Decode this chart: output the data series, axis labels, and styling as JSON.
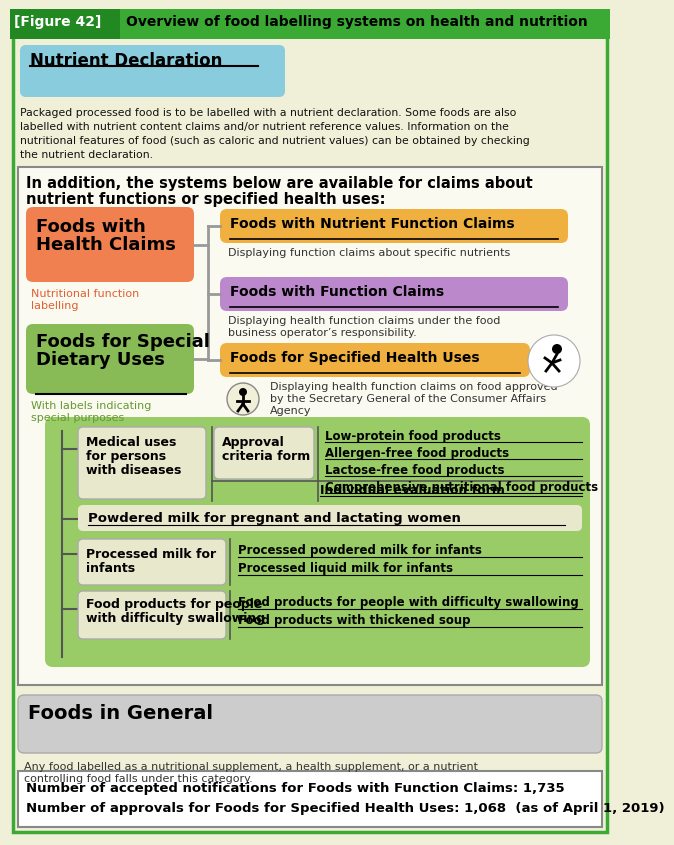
{
  "bg_color": "#f0f0d8",
  "header_green": "#3aaa35",
  "header_dark_green": "#228822",
  "fig_label": "[Figure 42]",
  "header_title": "Overview of food labelling systems on health and nutrition",
  "nd_box_color": "#88ccdd",
  "nd_title": "Nutrient Declaration",
  "nd_body1": "Packaged processed food is to be labelled with a nutrient declaration. Some foods are also",
  "nd_body2": "labelled with nutrient content claims and/or nutrient reference values. Information on the",
  "nd_body3": "nutritional features of food (such as caloric and nutrient values) can be obtained by checking",
  "nd_body4": "the nutrient declaration.",
  "main_bg": "#fafaf0",
  "main_border": "#888888",
  "intro_line1": "In addition, the systems below are available for claims about",
  "intro_line2": "nutrient functions or specified health uses:",
  "orange_color": "#f08050",
  "fhc_line1": "Foods with",
  "fhc_line2": "Health Claims",
  "nfl_color": "#e06030",
  "nfl_line1": "Nutritional function",
  "nfl_line2": "labelling",
  "green_left_color": "#88bb55",
  "fsdu_line1": "Foods for Special",
  "fsdu_line2": "Dietary Uses",
  "sp_color": "#669933",
  "sp_line1": "With labels indicating",
  "sp_line2": "special purposes",
  "amber_color": "#f0b040",
  "nfc_title": "Foods with Nutrient Function Claims",
  "nfc_desc": "Displaying function claims about specific nutrients",
  "purple_color": "#bb88cc",
  "fc_title": "Foods with Function Claims",
  "fc_desc1": "Displaying health function claims under the food",
  "fc_desc2": "business operator’s responsibility.",
  "sh_title": "Foods for Specified Health Uses",
  "sh_desc1": "Displaying health function claims on food approved",
  "sh_desc2": "by the Secretary General of the Consumer Affairs",
  "sh_desc3": "Agency",
  "green_sub_color": "#99cc66",
  "pale_box_color": "#e8e8cc",
  "pale_border": "#aaaaaa",
  "mu_line1": "Medical uses",
  "mu_line2": "for persons",
  "mu_line3": "with diseases",
  "ac_line1": "Approval",
  "ac_line2": "criteria form",
  "lp_text": "Low-protein food products",
  "af_text": "Allergen-free food products",
  "lf_text": "Lactose-free food products",
  "cn_text": "Comprehensive nutritional food products",
  "ie_text": "Individual evaluation form",
  "pm_text": "Powdered milk for pregnant and lactating women",
  "pmi_line1": "Processed milk for",
  "pmi_line2": "infants",
  "ppmi_text": "Processed powdered milk for infants",
  "plmi_text": "Processed liquid milk for infants",
  "ds_line1": "Food products for people",
  "ds_line2": "with difficulty swallowing",
  "dsp_text": "Food products for people with difficulty swallowing",
  "ts_text": "Food products with thickened soup",
  "fg_color": "#cccccc",
  "fg_title": "Foods in General",
  "fg_desc1": "Any food labelled as a nutritional supplement, a health supplement, or a nutrient",
  "fg_desc2": "controlling food falls under this category.",
  "ft_line1": "Number of accepted notifications for Foods with Function Claims: 1,735",
  "ft_line2": "Number of approvals for Foods for Specified Health Uses: 1,068  (as of April 1, 2019)"
}
